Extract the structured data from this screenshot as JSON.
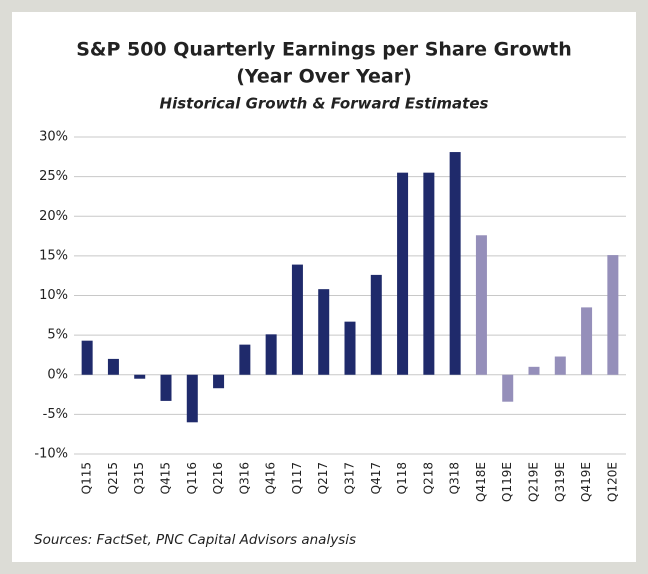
{
  "chart_data": {
    "type": "bar",
    "title": [
      "S&P 500 Quarterly Earnings per Share Growth",
      "(Year Over Year)"
    ],
    "subtitle": "Historical Growth & Forward Estimates",
    "source": "Sources: FactSet, PNC Capital Advisors analysis",
    "categories": [
      "Q115",
      "Q215",
      "Q315",
      "Q415",
      "Q116",
      "Q216",
      "Q316",
      "Q416",
      "Q117",
      "Q217",
      "Q317",
      "Q417",
      "Q118",
      "Q218",
      "Q318",
      "Q418E",
      "Q119E",
      "Q219E",
      "Q319E",
      "Q419E",
      "Q120E"
    ],
    "values": [
      4.3,
      2.0,
      -0.5,
      -3.3,
      -6.0,
      -1.7,
      3.8,
      5.1,
      13.9,
      10.8,
      6.7,
      12.6,
      25.5,
      25.5,
      28.1,
      17.6,
      -3.4,
      1.0,
      2.3,
      8.5,
      15.1
    ],
    "colors": [
      "#1f2a6b",
      "#1f2a6b",
      "#1f2a6b",
      "#1f2a6b",
      "#1f2a6b",
      "#1f2a6b",
      "#1f2a6b",
      "#1f2a6b",
      "#1f2a6b",
      "#1f2a6b",
      "#1f2a6b",
      "#1f2a6b",
      "#1f2a6b",
      "#1f2a6b",
      "#1f2a6b",
      "#958fba",
      "#958fba",
      "#958fba",
      "#958fba",
      "#958fba",
      "#958fba"
    ],
    "ylim": [
      -10,
      30
    ],
    "yticks": [
      {
        "value": -10,
        "label": "-10%"
      },
      {
        "value": -5,
        "label": "-5%"
      },
      {
        "value": 0,
        "label": "0%"
      },
      {
        "value": 5,
        "label": "5%"
      },
      {
        "value": 10,
        "label": "10%"
      },
      {
        "value": 15,
        "label": "15%"
      },
      {
        "value": 20,
        "label": "20%"
      },
      {
        "value": 25,
        "label": "25%"
      },
      {
        "value": 30,
        "label": "30%"
      }
    ],
    "grid": true
  }
}
